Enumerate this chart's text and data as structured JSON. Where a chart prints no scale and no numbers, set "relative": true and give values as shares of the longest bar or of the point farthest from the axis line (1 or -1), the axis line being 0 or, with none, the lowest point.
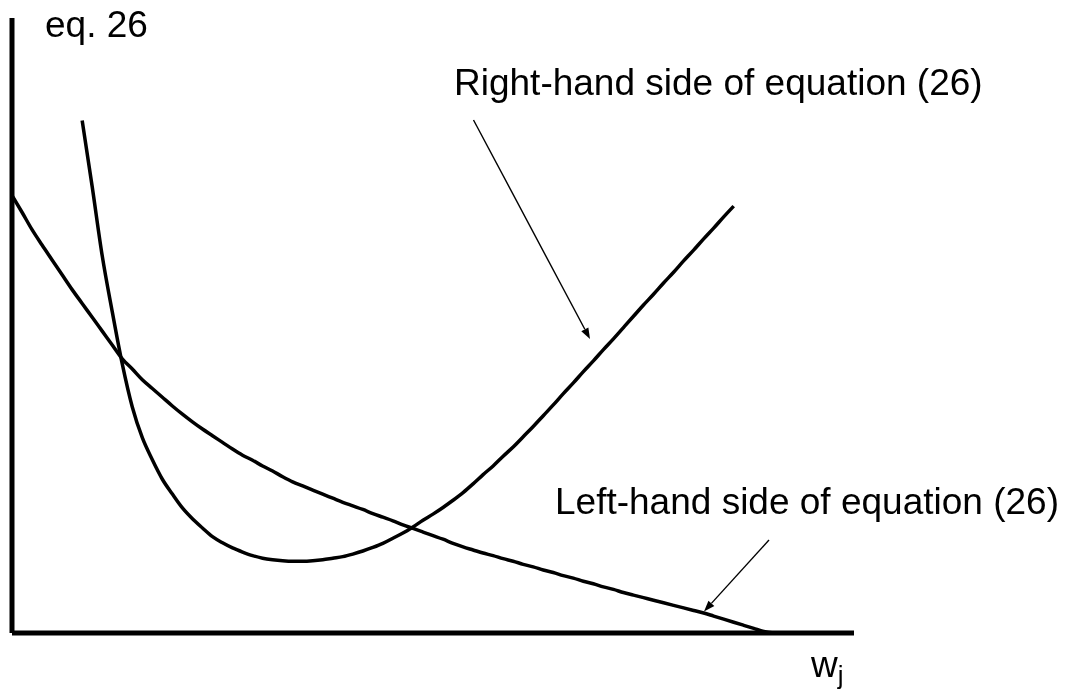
{
  "chart_data": {
    "type": "line",
    "relative": true,
    "ylabel": "eq. 26",
    "xlabel": "w$_{j}$",
    "line_style": "solid",
    "categories": [
      null,
      null,
      null,
      null,
      null,
      null,
      null,
      null,
      null,
      null,
      null,
      null,
      null,
      null,
      null,
      null,
      null,
      null,
      null,
      null,
      null,
      null,
      null,
      null,
      null,
      null,
      null,
      null,
      null,
      null,
      null,
      null,
      null,
      null,
      null,
      null,
      null,
      null,
      null,
      null,
      null,
      null,
      null,
      null,
      null,
      null,
      null,
      null,
      null,
      null,
      null,
      null,
      null,
      null,
      null,
      null,
      null,
      null,
      null,
      null,
      null,
      null,
      null,
      null,
      null,
      null,
      null,
      null,
      null,
      null,
      null,
      null,
      null,
      null,
      null,
      null,
      null,
      null,
      null,
      null,
      null,
      null,
      null,
      null,
      null
    ],
    "series": [
      {
        "name": "Right-hand side of equation (26)",
        "color": "#000000",
        "values": [
          null,
          null,
          null,
          null,
          null,
          null,
          null,
          1,
          0.871,
          0.736,
          0.627,
          0.525,
          0.441,
          0.381,
          0.338,
          0.3,
          0.271,
          0.244,
          0.223,
          0.205,
          0.188,
          0.176,
          0.166,
          0.158,
          0.151,
          0.146,
          0.143,
          0.141,
          0.14,
          0.14,
          0.141,
          0.143,
          0.146,
          0.149,
          0.154,
          0.16,
          0.167,
          0.175,
          0.185,
          0.195,
          0.207,
          0.22,
          0.232,
          0.245,
          0.259,
          0.274,
          0.291,
          0.309,
          0.326,
          0.345,
          0.363,
          0.383,
          0.403,
          0.424,
          0.445,
          0.467,
          0.488,
          0.51,
          0.531,
          0.553,
          0.574,
          0.596,
          0.618,
          0.64,
          0.661,
          0.683,
          0.704,
          0.726,
          0.747,
          0.769,
          0.79,
          0.812,
          0.833,
          null,
          null,
          null,
          null,
          null,
          null,
          null,
          null,
          null,
          null,
          null,
          null
        ]
      },
      {
        "name": "Left-hand side of equation (26)",
        "color": "#000000",
        "values": [
          0.854,
          0.821,
          0.787,
          0.757,
          0.728,
          0.699,
          0.67,
          0.643,
          0.616,
          0.589,
          0.562,
          0.535,
          0.515,
          0.494,
          0.477,
          0.46,
          0.443,
          0.427,
          0.412,
          0.398,
          0.385,
          0.372,
          0.359,
          0.347,
          0.337,
          0.326,
          0.316,
          0.305,
          0.295,
          0.287,
          0.279,
          0.271,
          0.263,
          0.255,
          0.248,
          0.241,
          0.233,
          0.226,
          0.219,
          0.211,
          0.204,
          0.197,
          0.19,
          0.183,
          0.175,
          0.168,
          0.162,
          0.156,
          0.151,
          0.145,
          0.14,
          0.134,
          0.129,
          0.123,
          0.118,
          0.112,
          0.107,
          0.101,
          0.096,
          0.09,
          0.085,
          0.079,
          0.074,
          0.069,
          0.064,
          0.059,
          0.054,
          0.049,
          0.044,
          0.039,
          0.033,
          0.027,
          0.021,
          0.015,
          0.009,
          0.003,
          0,
          null,
          null,
          null,
          null,
          null,
          null,
          null,
          null
        ]
      }
    ]
  }
}
